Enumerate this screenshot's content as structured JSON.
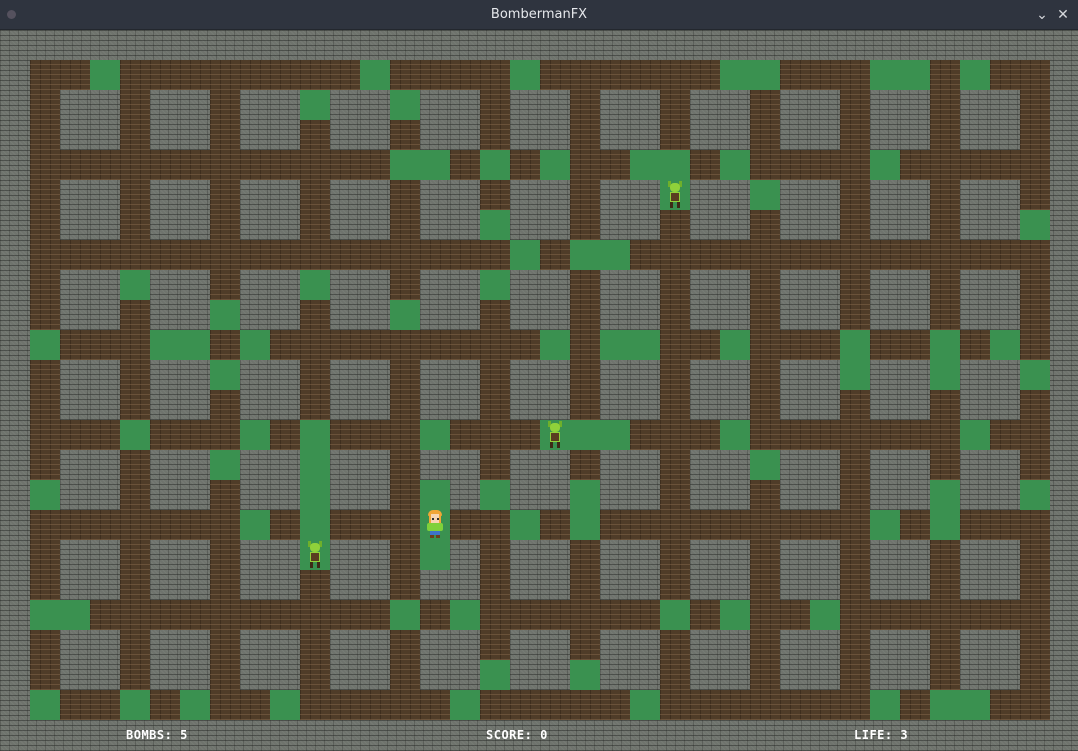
{
  "window": {
    "title": "BombermanFX",
    "minimize_icon": "chevron-down-icon",
    "close_icon": "close-icon"
  },
  "colors": {
    "destructible": "#3a9150",
    "path": "#4f3c28",
    "wall": "#6f736d"
  },
  "grid": {
    "columns": 34,
    "rows": 22,
    "destructible_blocks_by_row": [
      [
        2,
        11,
        16,
        23,
        24,
        28,
        29,
        31
      ],
      [
        9,
        12
      ],
      [],
      [
        12,
        13,
        15,
        17,
        20,
        21,
        23,
        28
      ],
      [
        21,
        24
      ],
      [
        15,
        33
      ],
      [
        16,
        18,
        19
      ],
      [
        3,
        9,
        15
      ],
      [
        6,
        12
      ],
      [
        0,
        4,
        5,
        7,
        17,
        19,
        20,
        23,
        27,
        30,
        32
      ],
      [
        6,
        27,
        30,
        33
      ],
      [],
      [
        3,
        7,
        9,
        13,
        17,
        18,
        19,
        23,
        31
      ],
      [
        6,
        9,
        24
      ],
      [
        0,
        9,
        13,
        15,
        18,
        30,
        33
      ],
      [
        7,
        9,
        13,
        16,
        18,
        28,
        30
      ],
      [
        9,
        13
      ],
      [],
      [
        0,
        1,
        12,
        14,
        21,
        23,
        26
      ],
      [],
      [
        15,
        18
      ],
      [
        0,
        3,
        5,
        8,
        14,
        20,
        28,
        30,
        31
      ]
    ]
  },
  "player": {
    "row": 15,
    "col": 13
  },
  "enemies": [
    {
      "row": 4,
      "col": 21
    },
    {
      "row": 12,
      "col": 17
    },
    {
      "row": 16,
      "col": 9
    }
  ],
  "status": {
    "bombs": "BOMBS: 5",
    "score": "SCORE: 0",
    "life": "LIFE: 3"
  }
}
